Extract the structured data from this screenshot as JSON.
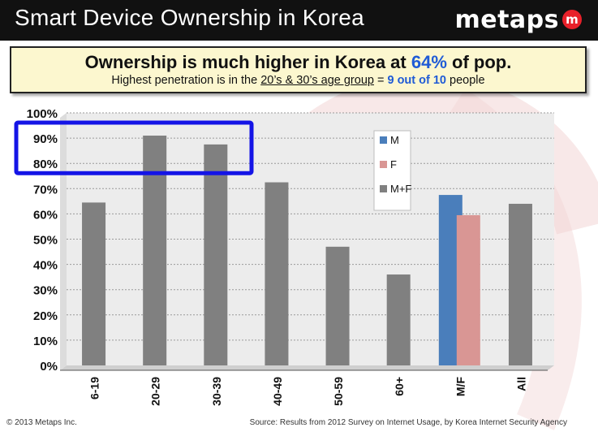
{
  "header": {
    "title": "Smart Device Ownership in Korea",
    "logo_text": "metaps",
    "logo_mark": "m"
  },
  "callout": {
    "headline_pre": "Ownership is much higher in Korea at ",
    "headline_accent": "64%",
    "headline_post": " of pop.",
    "sub_pre": "Highest penetration is in the ",
    "sub_underlined": "20’s & 30’s age group",
    "sub_mid": " = ",
    "sub_accent": "9 out of 10",
    "sub_post": " people"
  },
  "footer": {
    "copyright": "© 2013 Metaps Inc.",
    "source": "Source: Results from 2012 Survey on Internet Usage, by Korea Internet Security Agency"
  },
  "colors": {
    "header_bg": "#111111",
    "brand_red": "#e8202a",
    "accent_blue": "#1f5bd6",
    "callout_bg": "#fcf7cf",
    "plot_bg": "#ececec",
    "series_M": "#4a7ebb",
    "series_F": "#d99694",
    "series_MF": "#808080",
    "highlight_box": "#1414e6"
  },
  "chart_data": {
    "type": "bar",
    "categories": [
      "6-19",
      "20-29",
      "30-39",
      "40-49",
      "50-59",
      "60+",
      "M/F",
      "All"
    ],
    "series": [
      {
        "name": "M",
        "values": [
          null,
          null,
          null,
          null,
          null,
          null,
          67.5,
          null
        ]
      },
      {
        "name": "F",
        "values": [
          null,
          null,
          null,
          null,
          null,
          null,
          59.5,
          null
        ]
      },
      {
        "name": "M+F",
        "values": [
          64.5,
          91,
          87.5,
          72.5,
          47,
          36,
          null,
          64
        ]
      }
    ],
    "ylim": [
      0,
      100
    ],
    "yticks": [
      "0%",
      "10%",
      "20%",
      "30%",
      "40%",
      "50%",
      "60%",
      "70%",
      "80%",
      "90%",
      "100%"
    ],
    "grid": true,
    "legend_position": "top-right",
    "highlight_range": [
      80,
      100
    ],
    "highlight_label": "20’s & 30’s age group"
  }
}
